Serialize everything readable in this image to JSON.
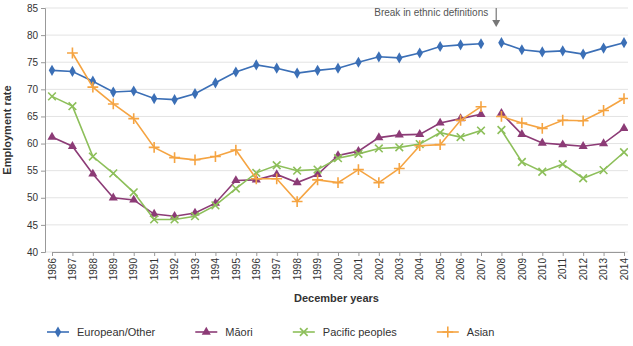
{
  "chart_data": {
    "type": "line",
    "x_label": "December years",
    "y_label": "Employment rate",
    "categories": [
      "1986",
      "1987",
      "1988",
      "1989",
      "1990",
      "1991",
      "1992",
      "1993",
      "1994",
      "1995",
      "1996",
      "1997",
      "1998",
      "1999",
      "2000",
      "2001",
      "2002",
      "2003",
      "2004",
      "2005",
      "2006",
      "2007",
      "2008",
      "2009",
      "2010",
      "2011",
      "2012",
      "2013",
      "2014"
    ],
    "series": [
      {
        "name": "European/Other",
        "color": "#3b6fb6",
        "marker": "diamond",
        "values": [
          73.5,
          73.3,
          71.5,
          69.5,
          69.7,
          68.3,
          68.1,
          69.2,
          71.2,
          73.2,
          74.5,
          73.9,
          73.0,
          73.5,
          73.9,
          75.0,
          76.0,
          75.8,
          76.7,
          77.9,
          78.2,
          78.4,
          78.6,
          77.3,
          76.9,
          77.1,
          76.5,
          77.6,
          78.6
        ]
      },
      {
        "name": "Māori",
        "color": "#8c3b76",
        "marker": "triangle",
        "values": [
          61.2,
          59.5,
          54.4,
          50.0,
          49.6,
          47.0,
          46.6,
          47.2,
          49.0,
          53.2,
          53.3,
          54.3,
          52.8,
          54.3,
          57.8,
          58.6,
          61.1,
          61.6,
          61.7,
          63.8,
          64.6,
          65.4,
          65.6,
          61.7,
          60.1,
          59.8,
          59.5,
          60.0,
          62.8
        ]
      },
      {
        "name": "Pacific peoples",
        "color": "#8dbf5a",
        "marker": "x",
        "values": [
          68.7,
          66.9,
          57.6,
          54.5,
          51.0,
          46.0,
          46.0,
          46.6,
          48.6,
          51.7,
          54.6,
          56.0,
          55.0,
          55.2,
          57.3,
          58.1,
          59.1,
          59.3,
          59.9,
          62.0,
          61.2,
          62.4,
          62.5,
          56.6,
          54.8,
          56.2,
          53.6,
          55.1,
          58.4
        ]
      },
      {
        "name": "Asian",
        "color": "#f5a442",
        "marker": "plus",
        "values": [
          null,
          76.7,
          70.4,
          67.3,
          64.6,
          59.3,
          57.4,
          57.0,
          57.6,
          58.8,
          53.5,
          53.5,
          49.3,
          53.3,
          52.8,
          55.2,
          52.8,
          55.4,
          59.6,
          59.8,
          64.3,
          66.8,
          65.0,
          63.8,
          62.8,
          64.3,
          64.2,
          66.1,
          68.3
        ]
      }
    ],
    "annotations": [
      {
        "text": "Break in ethnic definitions",
        "x": "2008"
      }
    ],
    "ylim": [
      40,
      85
    ],
    "yticks": [
      40,
      45,
      50,
      55,
      60,
      65,
      70,
      75,
      80,
      85
    ],
    "grid": true,
    "legend": "bottom"
  }
}
